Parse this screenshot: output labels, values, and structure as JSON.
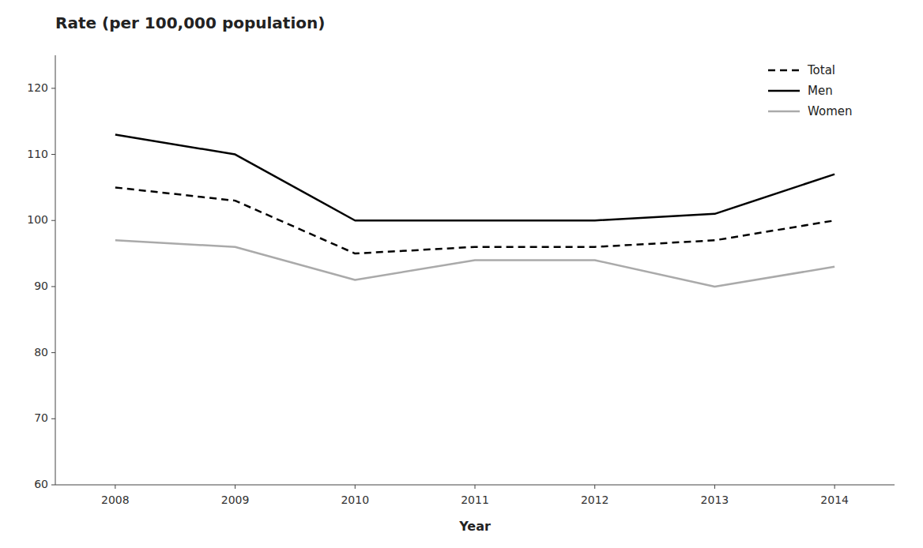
{
  "chart_data": {
    "type": "line",
    "title": "Rate (per 100,000 population)",
    "xlabel": "Year",
    "x": [
      2008,
      2009,
      2010,
      2011,
      2012,
      2013,
      2014
    ],
    "xlim": [
      2007.5,
      2014.5
    ],
    "xticks": [
      2008,
      2009,
      2010,
      2011,
      2012,
      2013,
      2014
    ],
    "ylim": [
      60,
      125
    ],
    "yticks": [
      60,
      70,
      80,
      90,
      100,
      110,
      120
    ],
    "series": [
      {
        "name": "Total",
        "color": "#000000",
        "line_style": "dashed",
        "values": [
          105,
          103,
          95,
          96,
          96,
          97,
          100
        ]
      },
      {
        "name": "Men",
        "color": "#000000",
        "line_style": "solid",
        "values": [
          113,
          110,
          100,
          100,
          100,
          101,
          107
        ]
      },
      {
        "name": "Women",
        "color": "#aaaaaa",
        "line_style": "solid",
        "values": [
          97,
          96,
          91,
          94,
          94,
          90,
          93
        ]
      }
    ],
    "legend": "upper right",
    "grid": false
  }
}
